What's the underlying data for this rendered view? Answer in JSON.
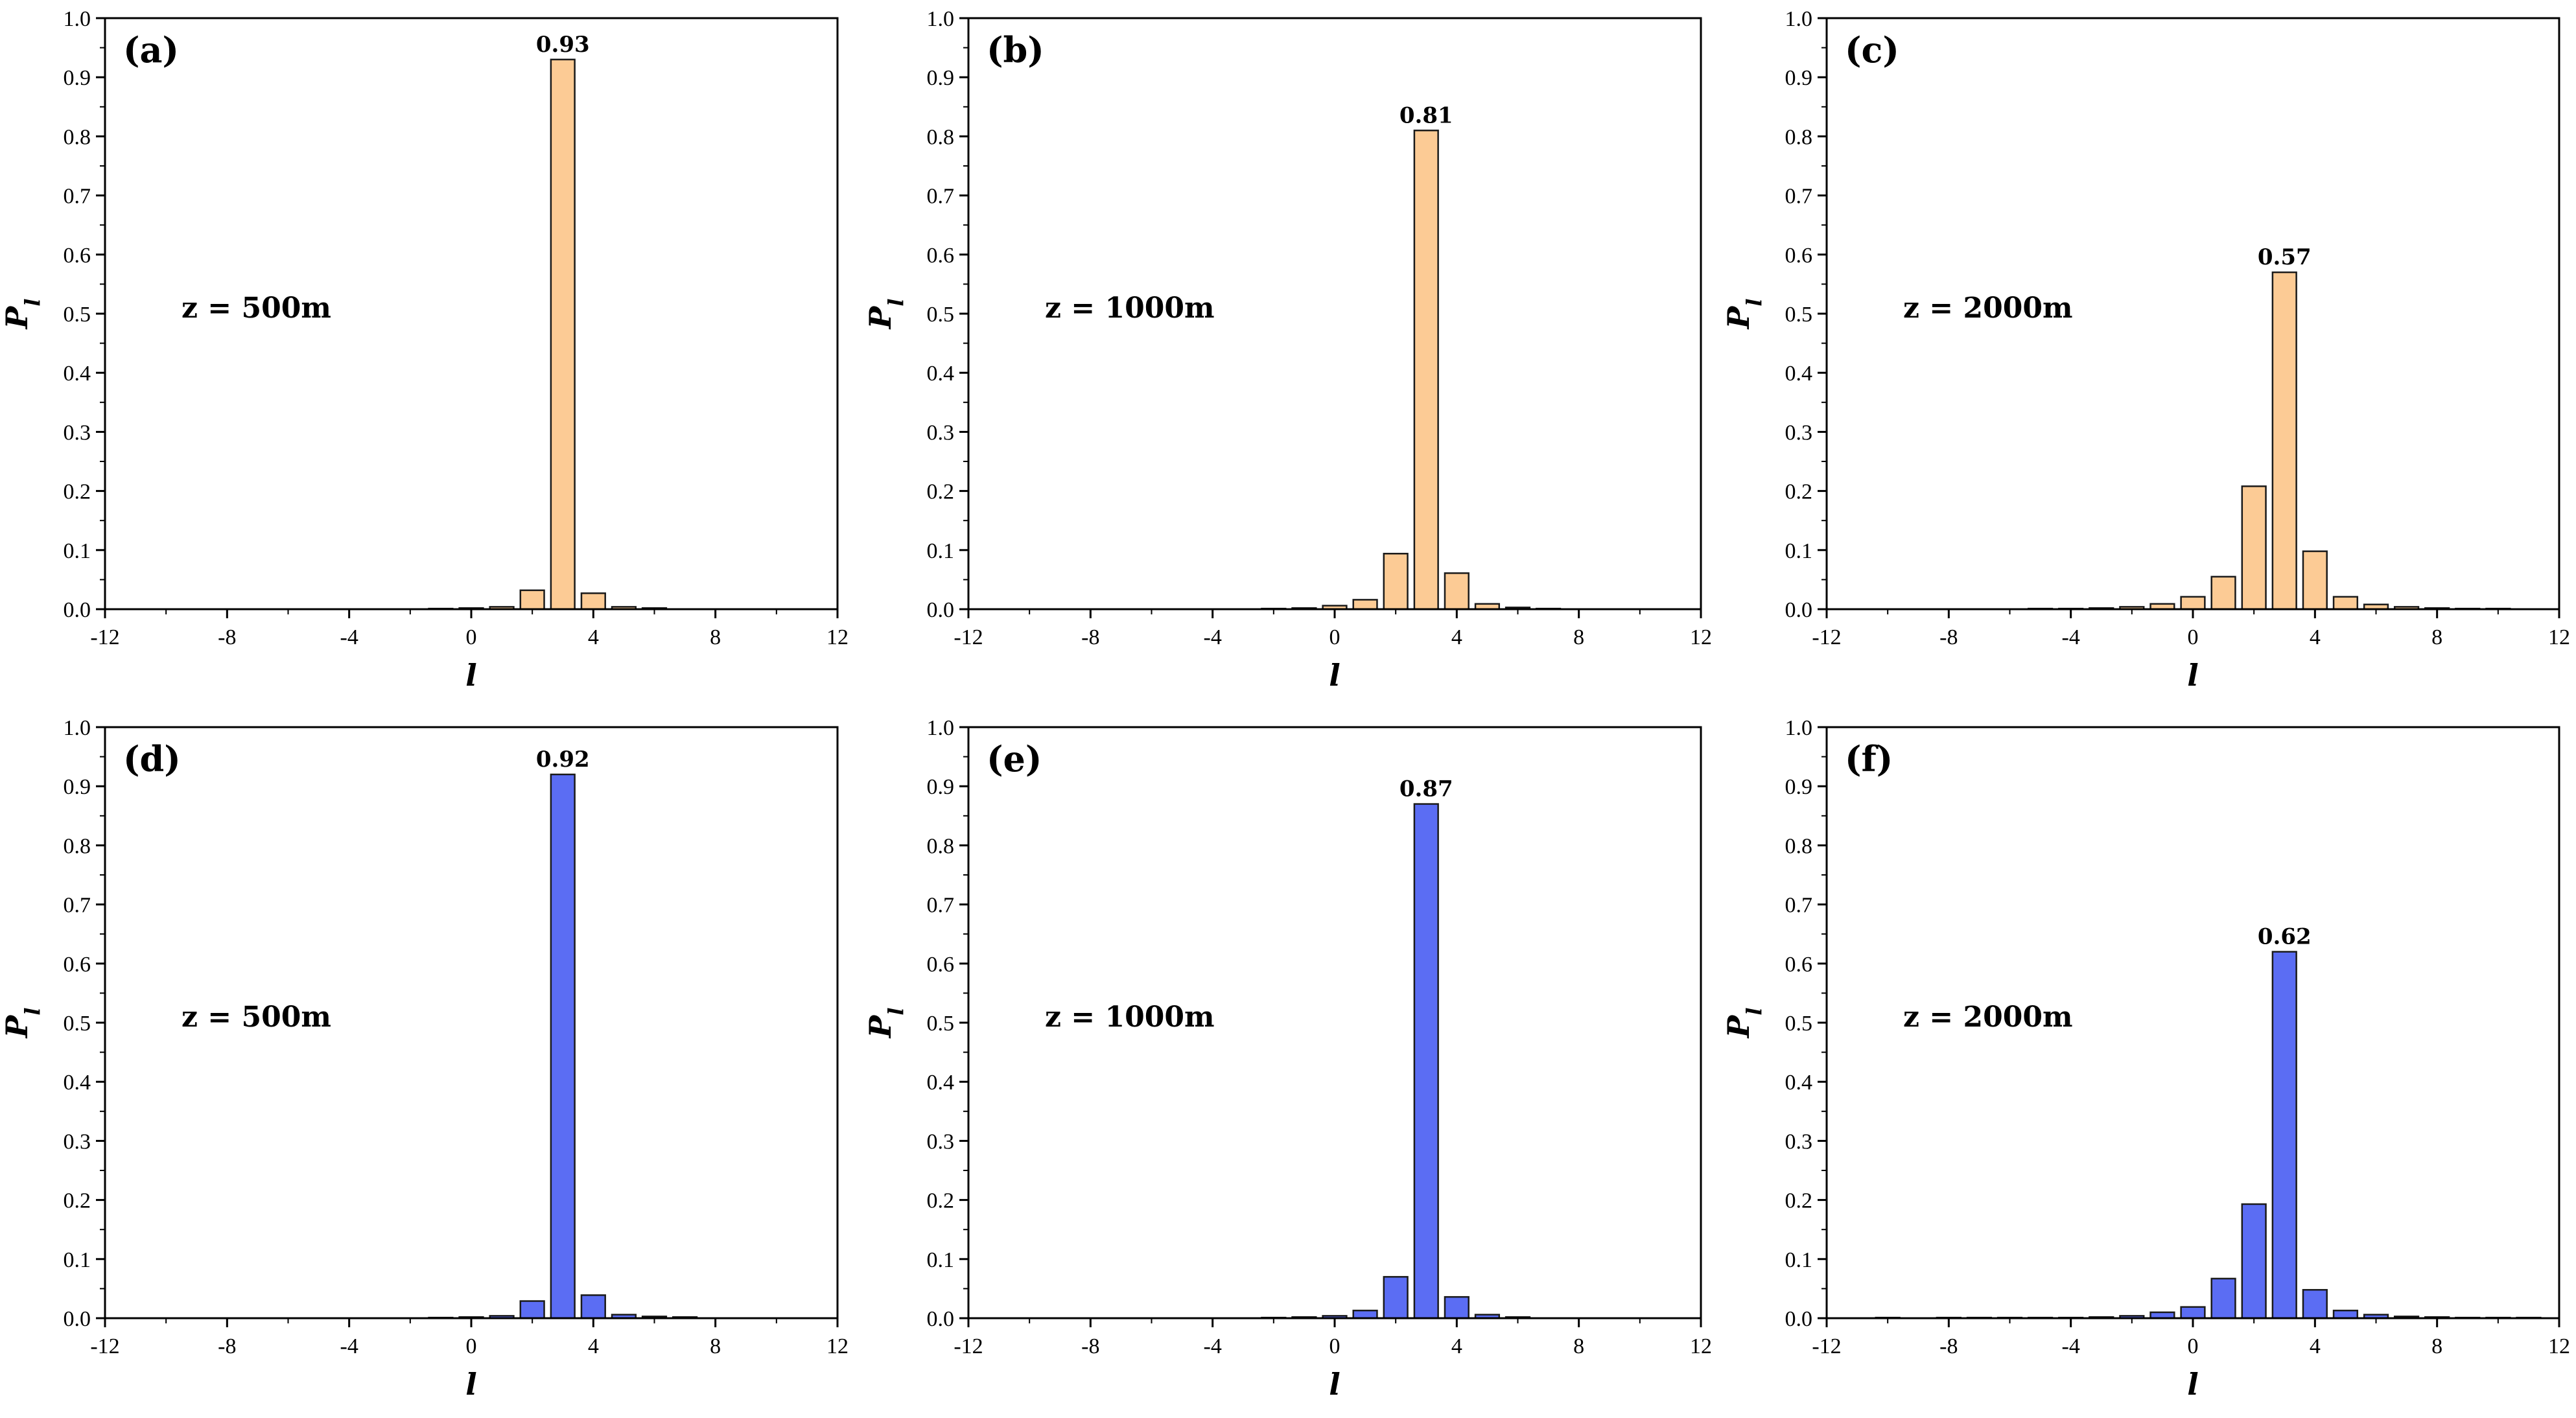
{
  "figure": {
    "description_free": true
  },
  "colors": {
    "orange": "#FCCB95",
    "blue": "#5B6DF3",
    "edge": "#1a1a1a"
  },
  "chart_data": [
    {
      "type": "bar",
      "panel": "(a)",
      "annotation": "z = 500m",
      "color": "#FCCB95",
      "xlabel": "l",
      "ylabel": "P_l",
      "xlim": [
        -12,
        12
      ],
      "ylim": [
        0,
        1.0
      ],
      "xticks": [
        "-12",
        "-8",
        "-4",
        "0",
        "4",
        "8",
        "12"
      ],
      "yticks": [
        "0.0",
        "0.1",
        "0.2",
        "0.3",
        "0.4",
        "0.5",
        "0.6",
        "0.7",
        "0.8",
        "0.9",
        "1.0"
      ],
      "peak_label": "0.93",
      "x": [
        -1,
        0,
        1,
        2,
        3,
        4,
        5,
        6
      ],
      "values": [
        0.001,
        0.002,
        0.004,
        0.032,
        0.93,
        0.027,
        0.004,
        0.002
      ]
    },
    {
      "type": "bar",
      "panel": "(b)",
      "annotation": "z = 1000m",
      "color": "#FCCB95",
      "xlabel": "l",
      "ylabel": "P_l",
      "xlim": [
        -12,
        12
      ],
      "ylim": [
        0,
        1.0
      ],
      "xticks": [
        "-12",
        "-8",
        "-4",
        "0",
        "4",
        "8",
        "12"
      ],
      "yticks": [
        "0.0",
        "0.1",
        "0.2",
        "0.3",
        "0.4",
        "0.5",
        "0.6",
        "0.7",
        "0.8",
        "0.9",
        "1.0"
      ],
      "peak_label": "0.81",
      "x": [
        -2,
        -1,
        0,
        1,
        2,
        3,
        4,
        5,
        6,
        7
      ],
      "values": [
        0.001,
        0.002,
        0.006,
        0.016,
        0.094,
        0.81,
        0.061,
        0.009,
        0.003,
        0.001
      ]
    },
    {
      "type": "bar",
      "panel": "(c)",
      "annotation": "z = 2000m",
      "color": "#FCCB95",
      "xlabel": "l",
      "ylabel": "P_l",
      "xlim": [
        -12,
        12
      ],
      "ylim": [
        0,
        1.0
      ],
      "xticks": [
        "-12",
        "-8",
        "-4",
        "0",
        "4",
        "8",
        "12"
      ],
      "yticks": [
        "0.0",
        "0.1",
        "0.2",
        "0.3",
        "0.4",
        "0.5",
        "0.6",
        "0.7",
        "0.8",
        "0.9",
        "1.0"
      ],
      "peak_label": "0.57",
      "x": [
        -5,
        -4,
        -3,
        -2,
        -1,
        0,
        1,
        2,
        3,
        4,
        5,
        6,
        7,
        8,
        9,
        10
      ],
      "values": [
        0.001,
        0.001,
        0.002,
        0.004,
        0.009,
        0.021,
        0.055,
        0.208,
        0.57,
        0.098,
        0.021,
        0.008,
        0.004,
        0.002,
        0.001,
        0.001
      ]
    },
    {
      "type": "bar",
      "panel": "(d)",
      "annotation": "z = 500m",
      "color": "#5B6DF3",
      "xlabel": "l",
      "ylabel": "P_l",
      "xlim": [
        -12,
        12
      ],
      "ylim": [
        0,
        1.0
      ],
      "xticks": [
        "-12",
        "-8",
        "-4",
        "0",
        "4",
        "8",
        "12"
      ],
      "yticks": [
        "0.0",
        "0.1",
        "0.2",
        "0.3",
        "0.4",
        "0.5",
        "0.6",
        "0.7",
        "0.8",
        "0.9",
        "1.0"
      ],
      "peak_label": "0.92",
      "x": [
        -1,
        0,
        1,
        2,
        3,
        4,
        5,
        6,
        7
      ],
      "values": [
        0.001,
        0.002,
        0.004,
        0.029,
        0.92,
        0.039,
        0.006,
        0.003,
        0.002
      ]
    },
    {
      "type": "bar",
      "panel": "(e)",
      "annotation": "z = 1000m",
      "color": "#5B6DF3",
      "xlabel": "l",
      "ylabel": "P_l",
      "xlim": [
        -12,
        12
      ],
      "ylim": [
        0,
        1.0
      ],
      "xticks": [
        "-12",
        "-8",
        "-4",
        "0",
        "4",
        "8",
        "12"
      ],
      "yticks": [
        "0.0",
        "0.1",
        "0.2",
        "0.3",
        "0.4",
        "0.5",
        "0.6",
        "0.7",
        "0.8",
        "0.9",
        "1.0"
      ],
      "peak_label": "0.87",
      "x": [
        -2,
        -1,
        0,
        1,
        2,
        3,
        4,
        5,
        6
      ],
      "values": [
        0.001,
        0.002,
        0.004,
        0.013,
        0.07,
        0.87,
        0.036,
        0.006,
        0.002
      ]
    },
    {
      "type": "bar",
      "panel": "(f)",
      "annotation": "z = 2000m",
      "color": "#5B6DF3",
      "xlabel": "l",
      "ylabel": "P_l",
      "xlim": [
        -12,
        12
      ],
      "ylim": [
        0,
        1.0
      ],
      "xticks": [
        "-12",
        "-8",
        "-4",
        "0",
        "4",
        "8",
        "12"
      ],
      "yticks": [
        "0.0",
        "0.1",
        "0.2",
        "0.3",
        "0.4",
        "0.5",
        "0.6",
        "0.7",
        "0.8",
        "0.9",
        "1.0"
      ],
      "peak_label": "0.62",
      "x": [
        -10,
        -8,
        -7,
        -6,
        -5,
        -4,
        -3,
        -2,
        -1,
        0,
        1,
        2,
        3,
        4,
        5,
        6,
        7,
        8,
        9,
        10,
        11
      ],
      "values": [
        0.001,
        0.001,
        0.001,
        0.001,
        0.001,
        0.001,
        0.002,
        0.004,
        0.01,
        0.019,
        0.067,
        0.193,
        0.62,
        0.048,
        0.013,
        0.006,
        0.003,
        0.002,
        0.001,
        0.001,
        0.001
      ]
    }
  ]
}
